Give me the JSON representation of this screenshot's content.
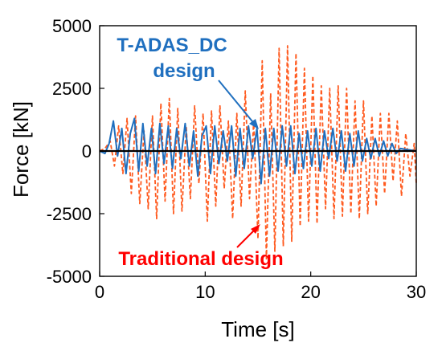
{
  "chart_data": {
    "type": "line",
    "title": "",
    "xlabel": "Time [s]",
    "ylabel": "Force [kN]",
    "xlim": [
      0,
      30
    ],
    "ylim": [
      -5000,
      5000
    ],
    "x_ticks": [
      "0",
      "10",
      "20",
      "30"
    ],
    "y_ticks": [
      "5000",
      "2500",
      "0",
      "-2500",
      "-5000"
    ],
    "grid": false,
    "legend": "none",
    "annotations": [
      "T-ADAS_DC",
      "design",
      "Traditional design"
    ],
    "colors": {
      "t_adas_dc": "#1f6fbf",
      "traditional": "#ff5a1f",
      "zero_line": "#000000",
      "red_label": "#ff0000"
    },
    "series": [
      {
        "style": "dashed",
        "color": "#ff5a1f",
        "x": [
          0,
          0.5,
          1.0,
          1.4,
          1.8,
          2.2,
          2.6,
          3.0,
          3.4,
          3.8,
          4.2,
          4.6,
          5.0,
          5.4,
          5.8,
          6.2,
          6.6,
          7.0,
          7.4,
          7.8,
          8.2,
          8.6,
          9.0,
          9.4,
          9.8,
          10.2,
          10.6,
          11.0,
          11.4,
          11.8,
          12.2,
          12.6,
          13.0,
          13.4,
          13.8,
          14.2,
          14.6,
          15.0,
          15.4,
          15.8,
          16.2,
          16.6,
          17.0,
          17.4,
          17.8,
          18.2,
          18.6,
          19.0,
          19.4,
          19.8,
          20.2,
          20.6,
          21.0,
          21.4,
          21.8,
          22.2,
          22.6,
          23.0,
          23.4,
          23.8,
          24.2,
          24.6,
          25.0,
          25.4,
          25.8,
          26.2,
          26.6,
          27.0,
          27.4,
          27.8,
          28.2,
          28.6,
          29.0,
          29.4,
          29.8,
          30.0
        ],
        "values": [
          0,
          100,
          400,
          -600,
          1000,
          -900,
          1300,
          -1700,
          1400,
          -2100,
          800,
          -2300,
          1400,
          -2700,
          1900,
          -2000,
          2100,
          -2500,
          1700,
          -2400,
          1000,
          -1900,
          1800,
          -1300,
          1500,
          -2800,
          1600,
          -2200,
          1800,
          -1500,
          1200,
          -2700,
          1500,
          -2200,
          2400,
          -1900,
          1200,
          -3500,
          3600,
          -4300,
          2300,
          -4000,
          4100,
          -3800,
          4200,
          -3600,
          3900,
          -3000,
          3300,
          -2800,
          3000,
          -2900,
          2600,
          -2300,
          2500,
          -2700,
          2600,
          -2600,
          2500,
          -2500,
          2000,
          -2700,
          2000,
          -2500,
          1400,
          -2200,
          1500,
          -1700,
          1500,
          -1200,
          1200,
          -1800,
          700,
          -1000,
          300,
          -1300
        ]
      },
      {
        "style": "solid",
        "color": "#1f6fbf",
        "x": [
          0,
          0.5,
          0.9,
          1.3,
          1.7,
          2.1,
          2.5,
          2.9,
          3.3,
          3.7,
          4.1,
          4.5,
          4.9,
          5.3,
          5.7,
          6.1,
          6.5,
          6.9,
          7.3,
          7.7,
          8.1,
          8.5,
          8.9,
          9.3,
          9.7,
          10.1,
          10.5,
          10.9,
          11.3,
          11.7,
          12.1,
          12.5,
          12.9,
          13.3,
          13.7,
          14.1,
          14.5,
          14.9,
          15.3,
          15.7,
          16.1,
          16.5,
          16.9,
          17.3,
          17.7,
          18.1,
          18.5,
          18.9,
          19.3,
          19.7,
          20.1,
          20.5,
          20.9,
          21.3,
          21.7,
          22.1,
          22.5,
          22.9,
          23.3,
          23.7,
          24.1,
          24.5,
          24.9,
          25.3,
          25.7,
          26.1,
          26.5,
          26.9,
          27.3,
          27.7,
          28.1,
          28.5,
          30.0
        ],
        "values": [
          0,
          -100,
          300,
          1200,
          -200,
          900,
          -900,
          700,
          1300,
          -800,
          1100,
          -600,
          900,
          -900,
          1100,
          -500,
          1000,
          -700,
          900,
          -300,
          1100,
          -600,
          800,
          -1000,
          600,
          1000,
          -900,
          1000,
          -500,
          800,
          -400,
          1000,
          -1000,
          900,
          -700,
          1000,
          -300,
          900,
          -1300,
          900,
          -1000,
          900,
          -800,
          1000,
          -600,
          1000,
          -900,
          700,
          -700,
          800,
          -600,
          900,
          -800,
          800,
          -300,
          900,
          -400,
          800,
          -800,
          700,
          -600,
          800,
          -400,
          500,
          -300,
          500,
          -200,
          400,
          -200,
          300,
          -100,
          100,
          0
        ]
      }
    ]
  }
}
